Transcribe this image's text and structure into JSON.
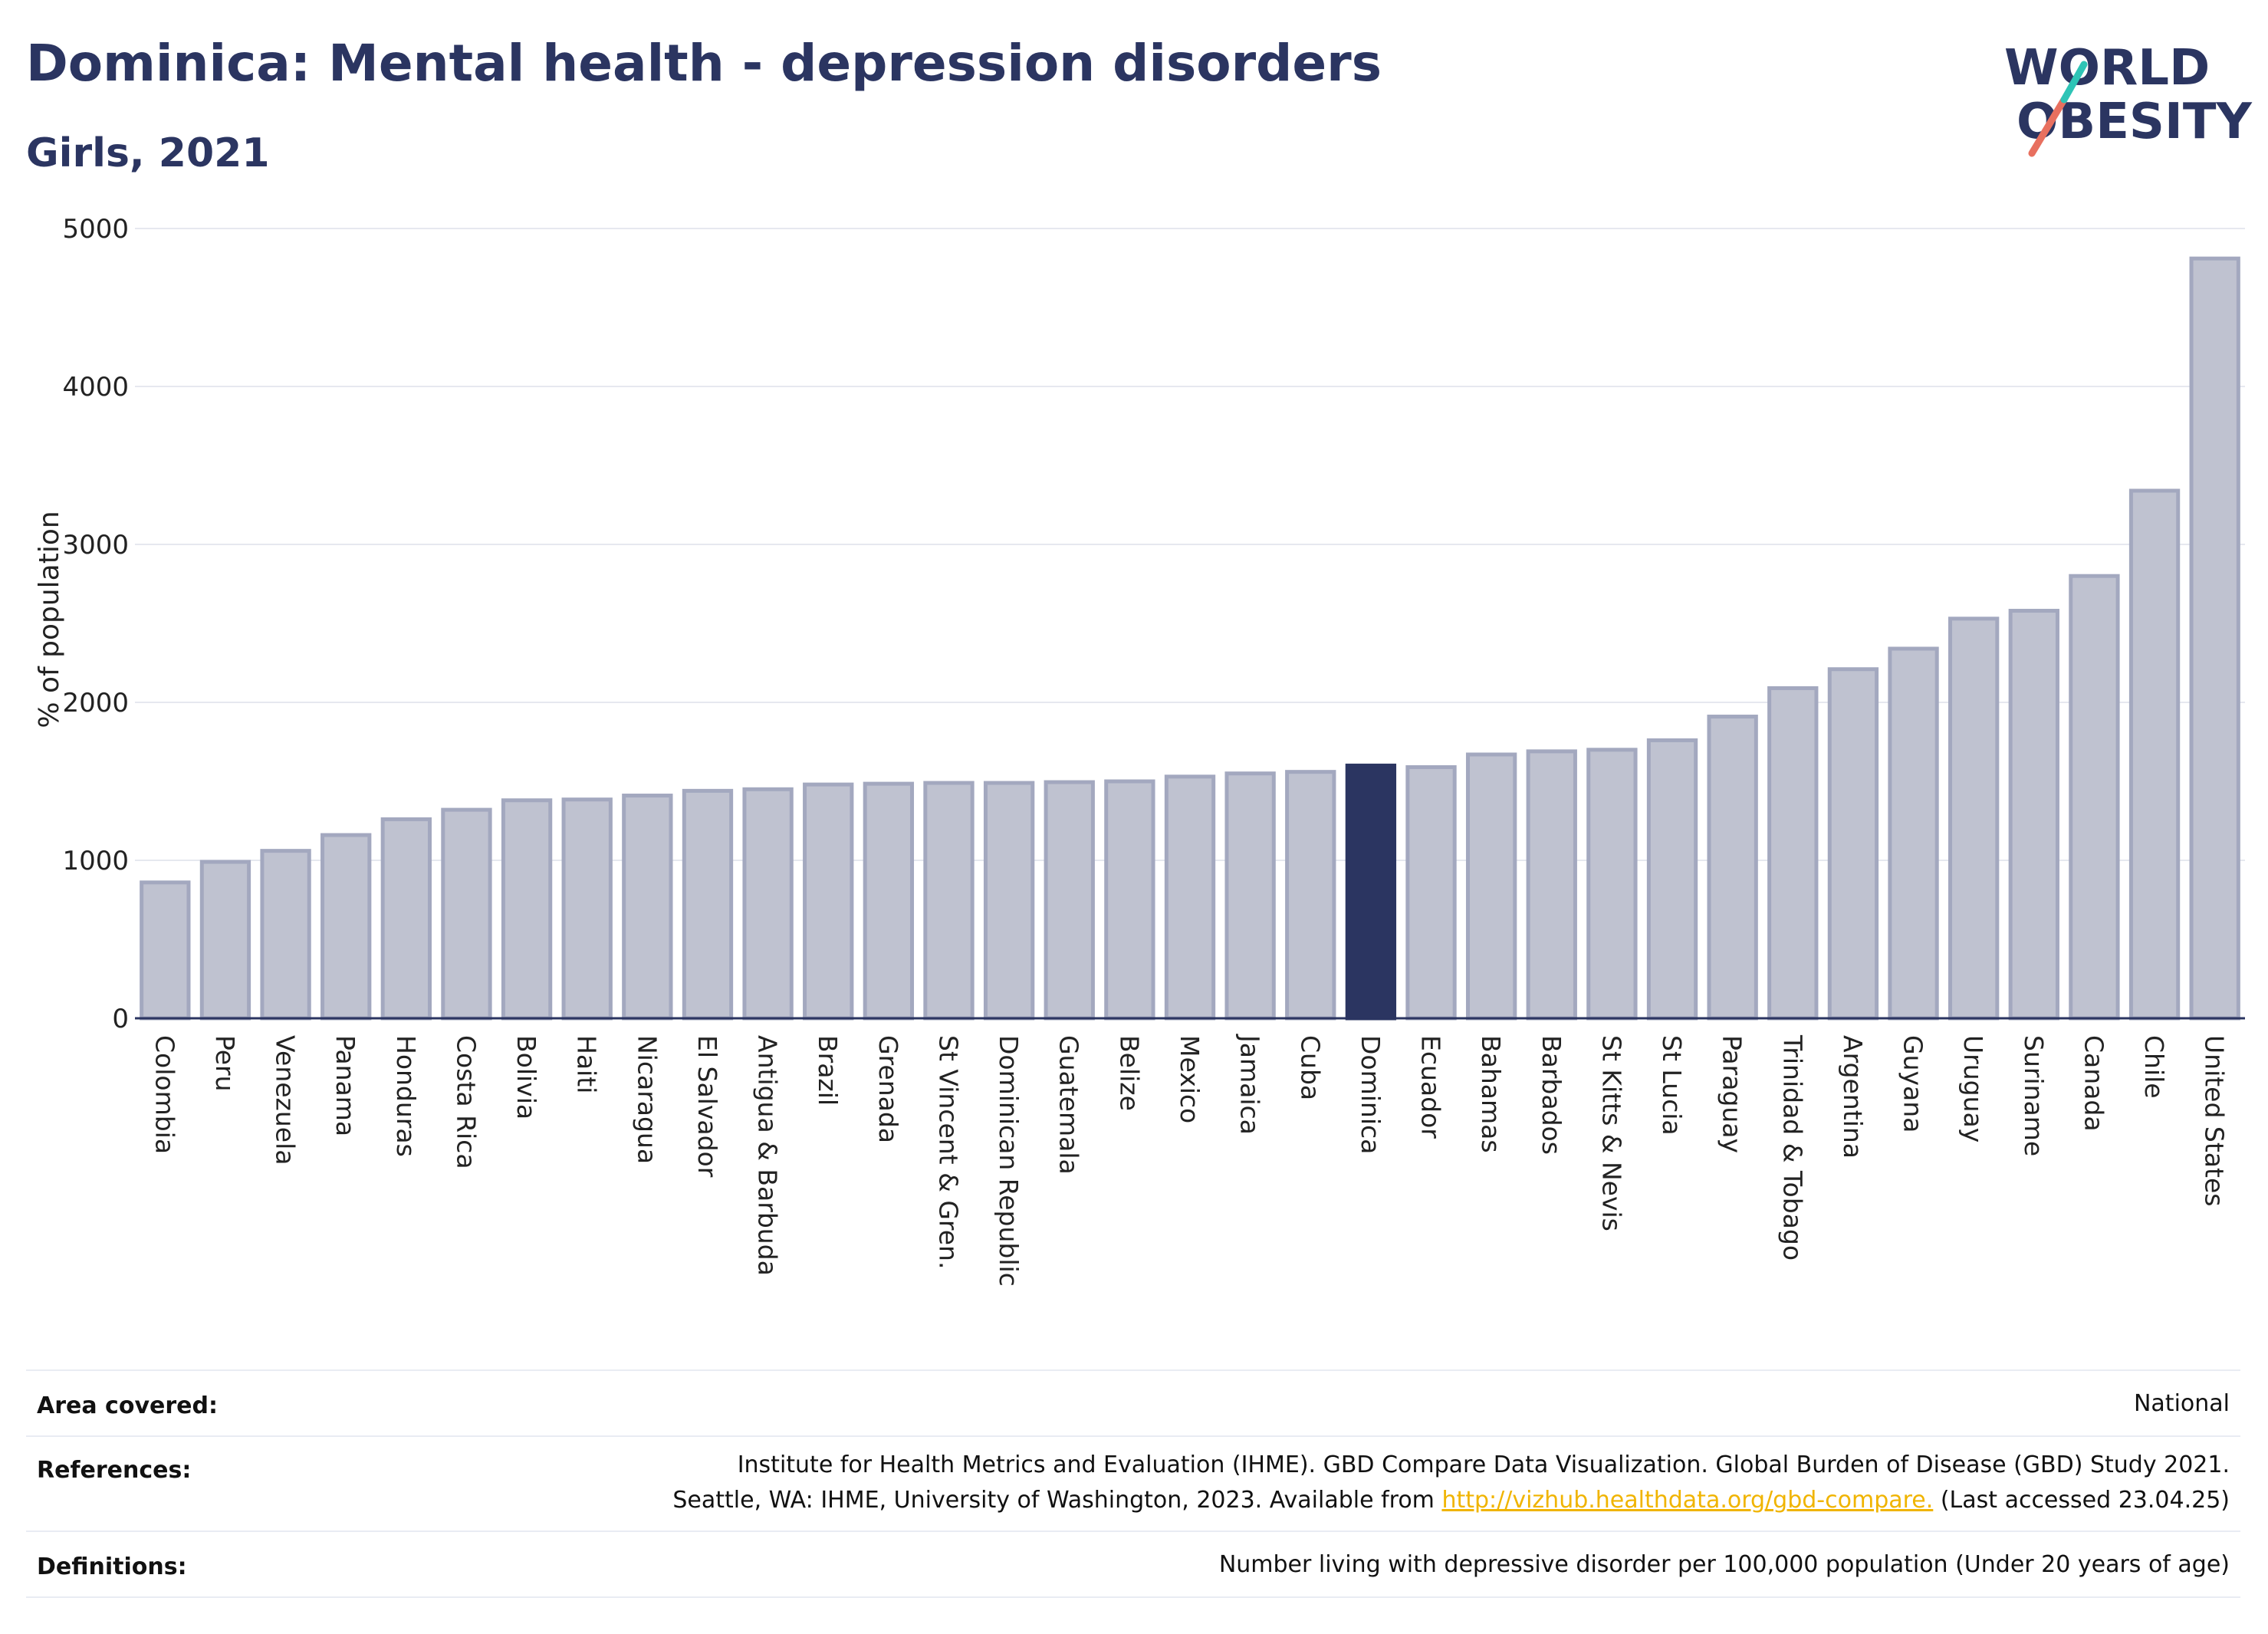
{
  "header": {
    "title": "Dominica: Mental health - depression disorders",
    "subtitle": "Girls, 2021"
  },
  "logo": {
    "line1": "WORLD",
    "line2": "OBESITY"
  },
  "colors": {
    "bar_fill": "#bfc2d0",
    "bar_stroke": "#a3a8bf",
    "highlight": "#2b3561",
    "brand_teal": "#2ec4b6",
    "brand_coral": "#e8705f",
    "link": "#f0b400"
  },
  "chart_data": {
    "type": "bar",
    "title": "",
    "xlabel": "",
    "ylabel": "% of population",
    "ylim": [
      0,
      5000
    ],
    "yticks": [
      0,
      1000,
      2000,
      3000,
      4000,
      5000
    ],
    "grid": true,
    "highlight": "Dominica",
    "categories": [
      "Colombia",
      "Peru",
      "Venezuela",
      "Panama",
      "Honduras",
      "Costa Rica",
      "Bolivia",
      "Haiti",
      "Nicaragua",
      "El Salvador",
      "Antigua & Barbuda",
      "Brazil",
      "Grenada",
      "St Vincent & Gren.",
      "Dominican Republic",
      "Guatemala",
      "Belize",
      "Mexico",
      "Jamaica",
      "Cuba",
      "Dominica",
      "Ecuador",
      "Bahamas",
      "Barbados",
      "St Kitts & Nevis",
      "St Lucia",
      "Paraguay",
      "Trinidad & Tobago",
      "Argentina",
      "Guyana",
      "Uruguay",
      "Suriname",
      "Canada",
      "Chile",
      "United States"
    ],
    "values": [
      860,
      990,
      1060,
      1160,
      1260,
      1320,
      1380,
      1385,
      1410,
      1440,
      1450,
      1480,
      1485,
      1490,
      1490,
      1495,
      1500,
      1530,
      1550,
      1560,
      1600,
      1590,
      1670,
      1690,
      1700,
      1760,
      1910,
      2090,
      2210,
      2340,
      2530,
      2580,
      2800,
      3340,
      4810
    ]
  },
  "info": {
    "area_label": "Area covered:",
    "area_value": "National",
    "references_label": "References:",
    "references_line1": "Institute for Health Metrics and Evaluation (IHME). GBD Compare Data Visualization. Global Burden of Disease (GBD) Study 2021.",
    "references_line2_pre": "Seattle, WA: IHME, University of Washington, 2023. Available from ",
    "references_link": "http://vizhub.healthdata.org/gbd-compare.",
    "references_line2_post": " (Last accessed 23.04.25)",
    "definitions_label": "Definitions:",
    "definitions_value": "Number living with depressive disorder per 100,000 population (Under 20 years of age)"
  }
}
